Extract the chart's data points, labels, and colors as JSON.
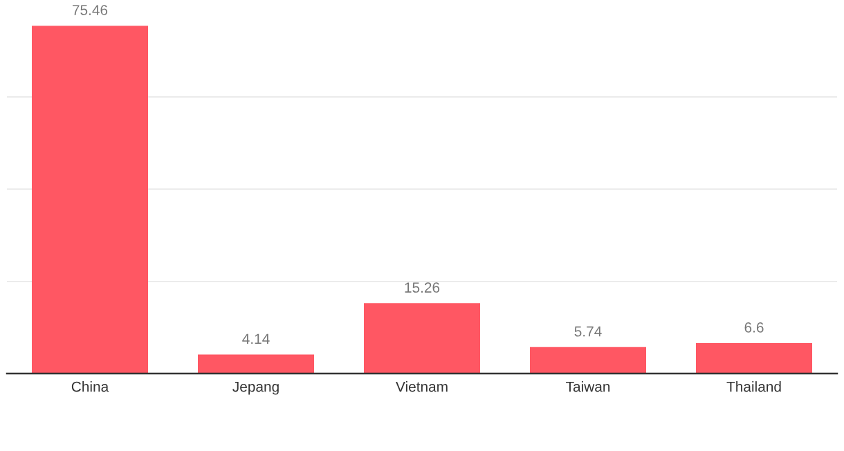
{
  "chart_data": {
    "type": "bar",
    "categories": [
      "China",
      "Jepang",
      "Vietnam",
      "Taiwan",
      "Thailand"
    ],
    "values": [
      75.46,
      4.14,
      15.26,
      5.74,
      6.6
    ],
    "color": "#ff5763",
    "yticks": [
      {
        "value": 20,
        "label": null
      },
      {
        "value": 40,
        "label": null
      },
      {
        "value": 60,
        "label": null
      }
    ],
    "grid": "y",
    "tick_labels": "x",
    "data_labels": true
  }
}
